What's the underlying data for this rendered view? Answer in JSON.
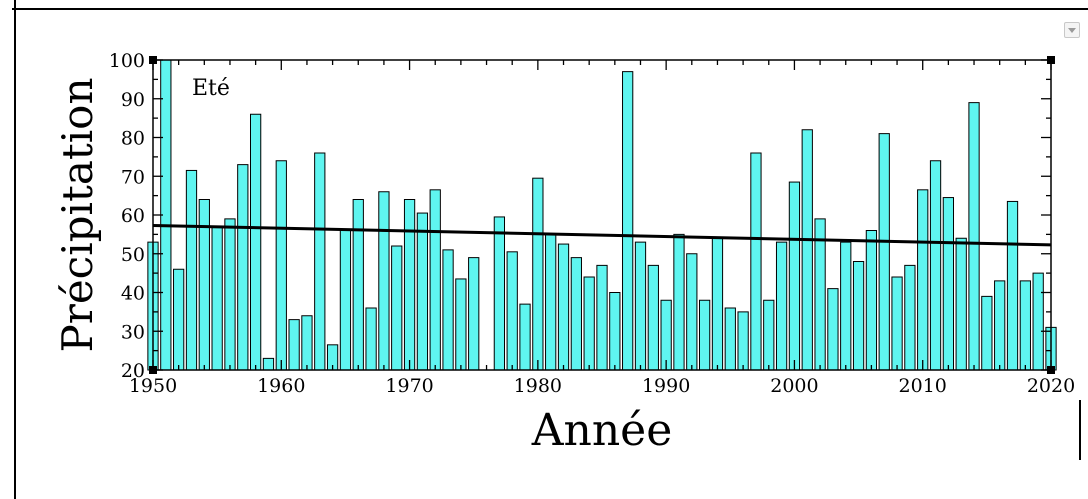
{
  "chart_data": {
    "type": "bar",
    "annotation": "Eté",
    "xlabel": "Année",
    "ylabel": "Précipitation",
    "xlim": [
      1950,
      2020
    ],
    "ylim": [
      20,
      100
    ],
    "x_ticks": [
      "1950",
      "1960",
      "1970",
      "1980",
      "1990",
      "2000",
      "2010",
      "2020"
    ],
    "y_ticks": [
      "20",
      "30",
      "40",
      "50",
      "60",
      "70",
      "80",
      "90",
      "100"
    ],
    "grid": false,
    "legend": "none",
    "colors": {
      "bar_fill": "#5ff5f0",
      "bar_stroke": "#000000",
      "trend": "#000000"
    },
    "series": [
      {
        "x": [
          1950,
          1951,
          1952,
          1953,
          1954,
          1955,
          1956,
          1957,
          1958,
          1959,
          1960,
          1961,
          1962,
          1963,
          1964,
          1965,
          1966,
          1967,
          1968,
          1969,
          1970,
          1971,
          1972,
          1973,
          1974,
          1975,
          1977,
          1978,
          1979,
          1980,
          1981,
          1982,
          1983,
          1984,
          1985,
          1986,
          1987,
          1988,
          1989,
          1990,
          1991,
          1992,
          1993,
          1994,
          1995,
          1996,
          1997,
          1998,
          1999,
          2000,
          2001,
          2002,
          2003,
          2004,
          2005,
          2006,
          2007,
          2008,
          2009,
          2010,
          2011,
          2012,
          2013,
          2014,
          2015,
          2016,
          2017,
          2018,
          2019,
          2020
        ],
        "values": [
          53,
          100,
          46,
          71.5,
          64,
          57,
          59,
          73,
          86,
          23,
          74,
          33,
          34,
          76,
          26.5,
          56,
          64,
          36,
          66,
          52,
          64,
          60.5,
          66.5,
          51,
          43.5,
          49,
          59.5,
          50.5,
          37,
          69.5,
          55,
          52.5,
          49,
          44,
          47,
          40,
          97,
          53,
          47,
          38,
          55,
          50,
          38,
          54,
          36,
          35,
          76,
          38,
          53,
          68.5,
          82,
          59,
          41,
          53,
          48,
          56,
          81,
          44,
          47,
          66.5,
          74,
          64.5,
          54,
          89,
          39,
          43,
          63.5,
          43,
          45,
          31
        ]
      }
    ],
    "trend_line": {
      "x": [
        1950,
        2020
      ],
      "y": [
        57.3,
        52.3
      ]
    }
  }
}
